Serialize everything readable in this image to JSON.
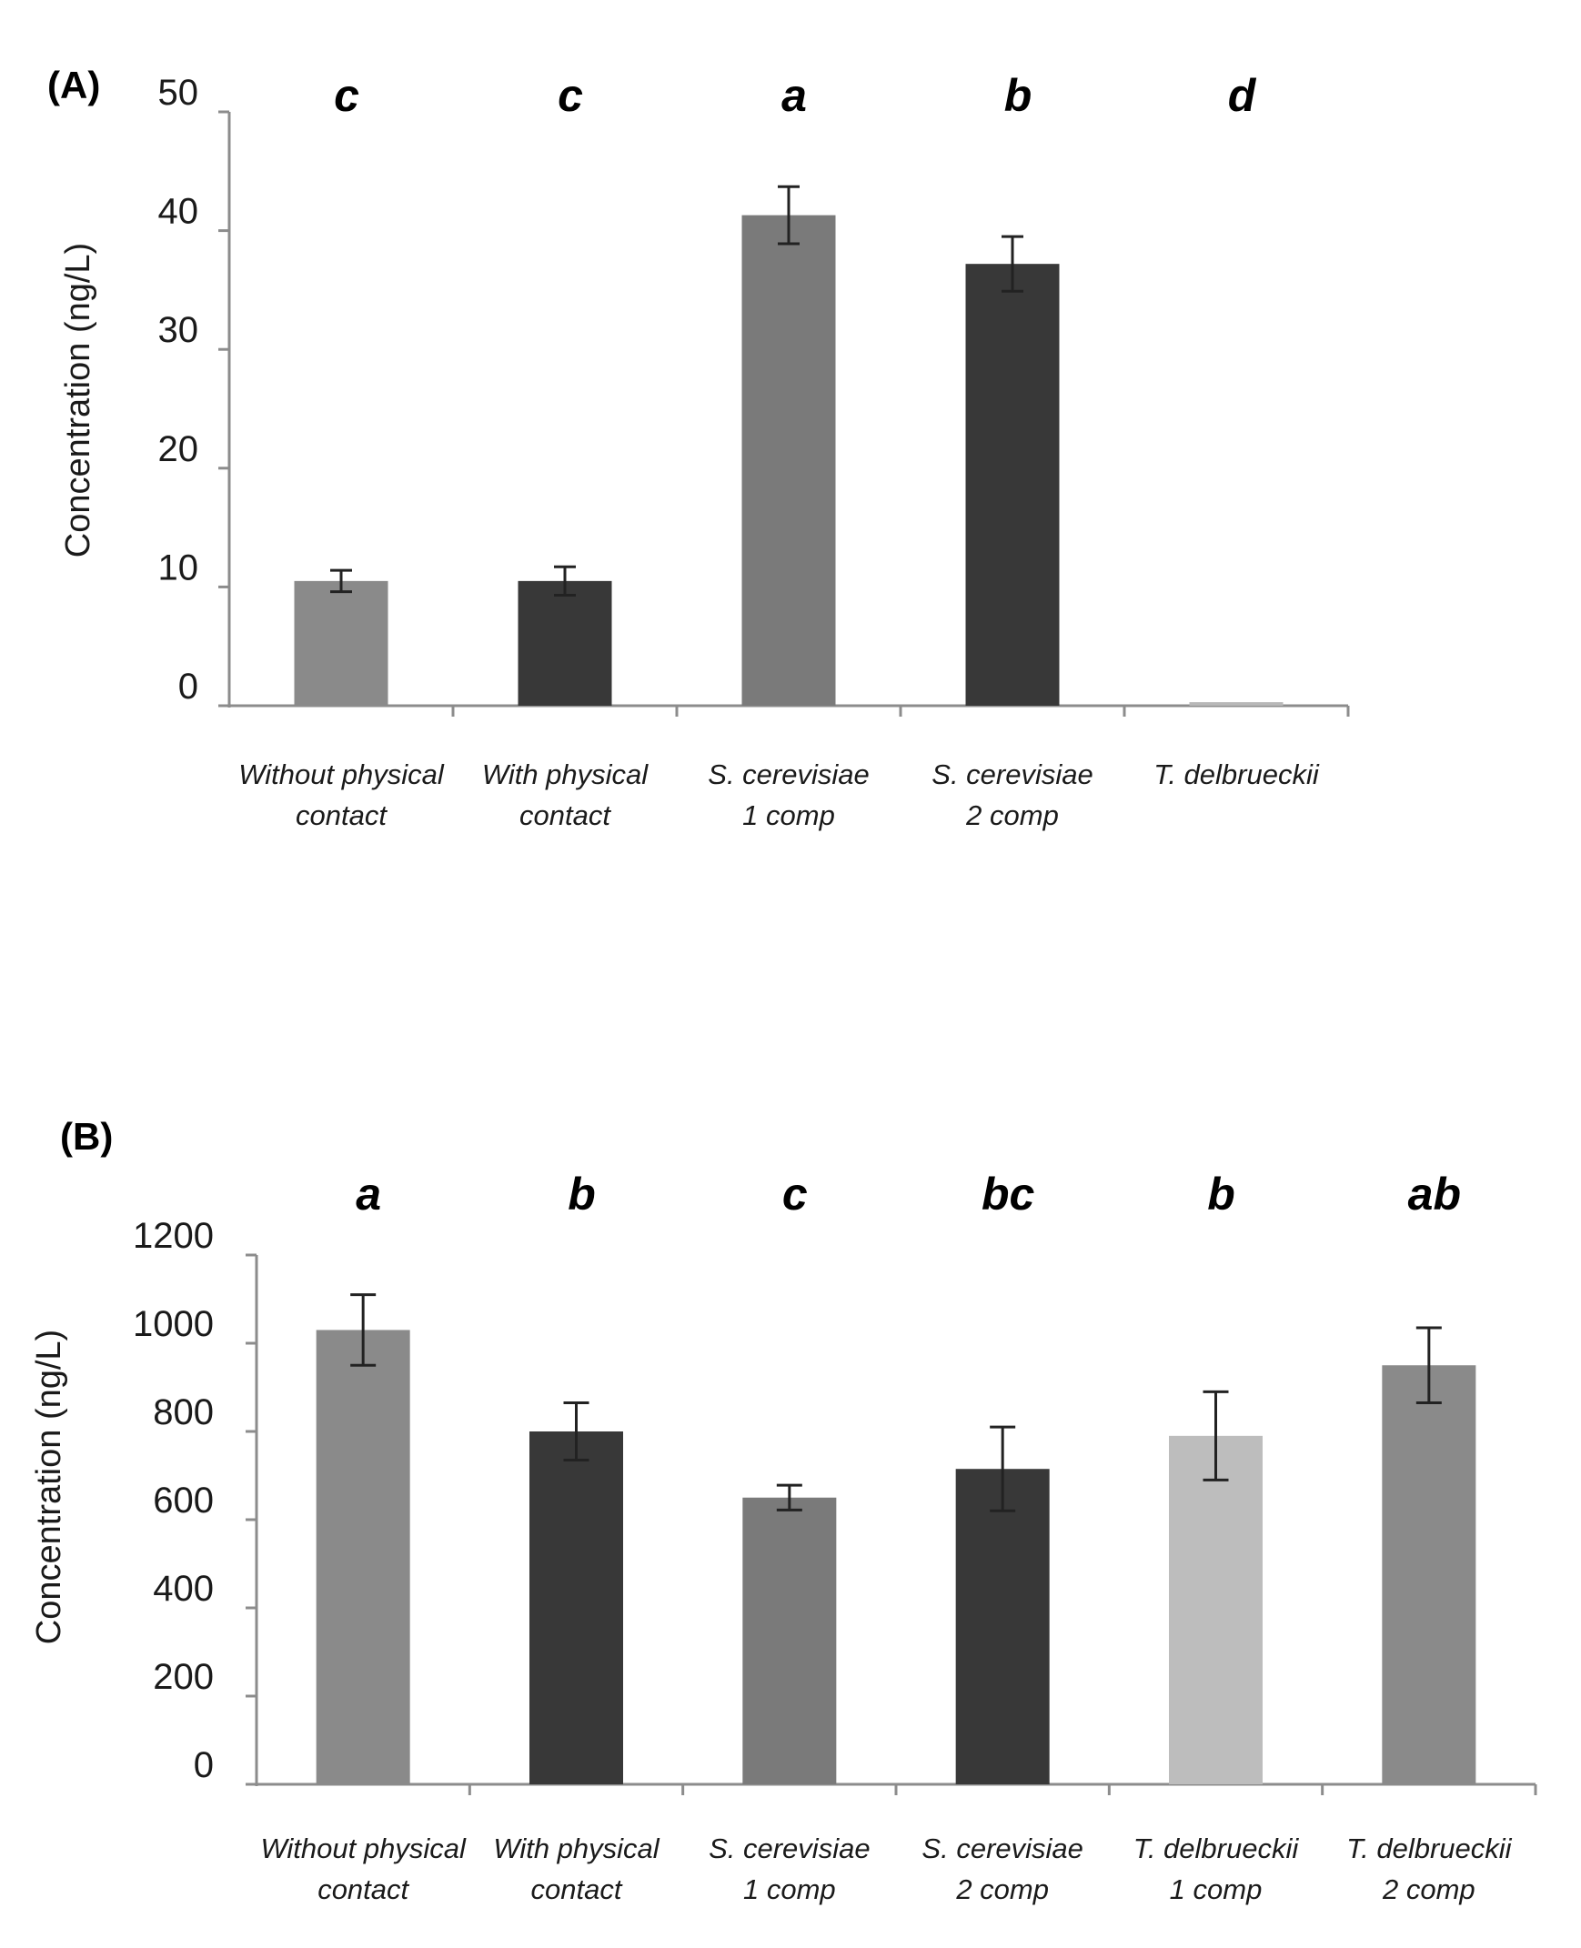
{
  "chart_data": [
    {
      "type": "bar",
      "panel_label": "(A)",
      "ylabel": "Concentration (ng/L)",
      "ylim": [
        0,
        50
      ],
      "yticks": [
        "0",
        "10",
        "20",
        "30",
        "40",
        "50"
      ],
      "grid": false,
      "categories": [
        [
          "Without physical",
          "contact"
        ],
        [
          "With physical",
          "contact"
        ],
        [
          "S. cerevisiae",
          "1 comp"
        ],
        [
          "S. cerevisiae",
          "2 comp"
        ],
        [
          "T. delbrueckii"
        ]
      ],
      "values": [
        10.5,
        10.5,
        41.3,
        37.2,
        0.3
      ],
      "errors": [
        0.9,
        1.2,
        2.4,
        2.3,
        0
      ],
      "significance": [
        "c",
        "c",
        "a",
        "b",
        "d"
      ],
      "bar_colors": [
        "#8a8a8a",
        "#383838",
        "#7a7a7a",
        "#383838",
        "#b8b8b8"
      ]
    },
    {
      "type": "bar",
      "panel_label": "(B)",
      "ylabel": "Concentration (ng/L)",
      "ylim": [
        0,
        1200
      ],
      "yticks": [
        "0",
        "200",
        "400",
        "600",
        "800",
        "1000",
        "1200"
      ],
      "grid": false,
      "categories": [
        [
          "Without physical",
          "contact"
        ],
        [
          "With physical",
          "contact"
        ],
        [
          "S. cerevisiae",
          "1 comp"
        ],
        [
          "S. cerevisiae",
          "2 comp"
        ],
        [
          "T. delbrueckii",
          "1 comp"
        ],
        [
          "T. delbrueckii",
          "2 comp"
        ]
      ],
      "values": [
        1030,
        800,
        650,
        715,
        790,
        950
      ],
      "errors": [
        80,
        65,
        28,
        95,
        100,
        85
      ],
      "significance": [
        "a",
        "b",
        "c",
        "bc",
        "b",
        "ab"
      ],
      "bar_colors": [
        "#8a8a8a",
        "#383838",
        "#7a7a7a",
        "#383838",
        "#bdbdbd",
        "#8a8a8a"
      ]
    }
  ]
}
